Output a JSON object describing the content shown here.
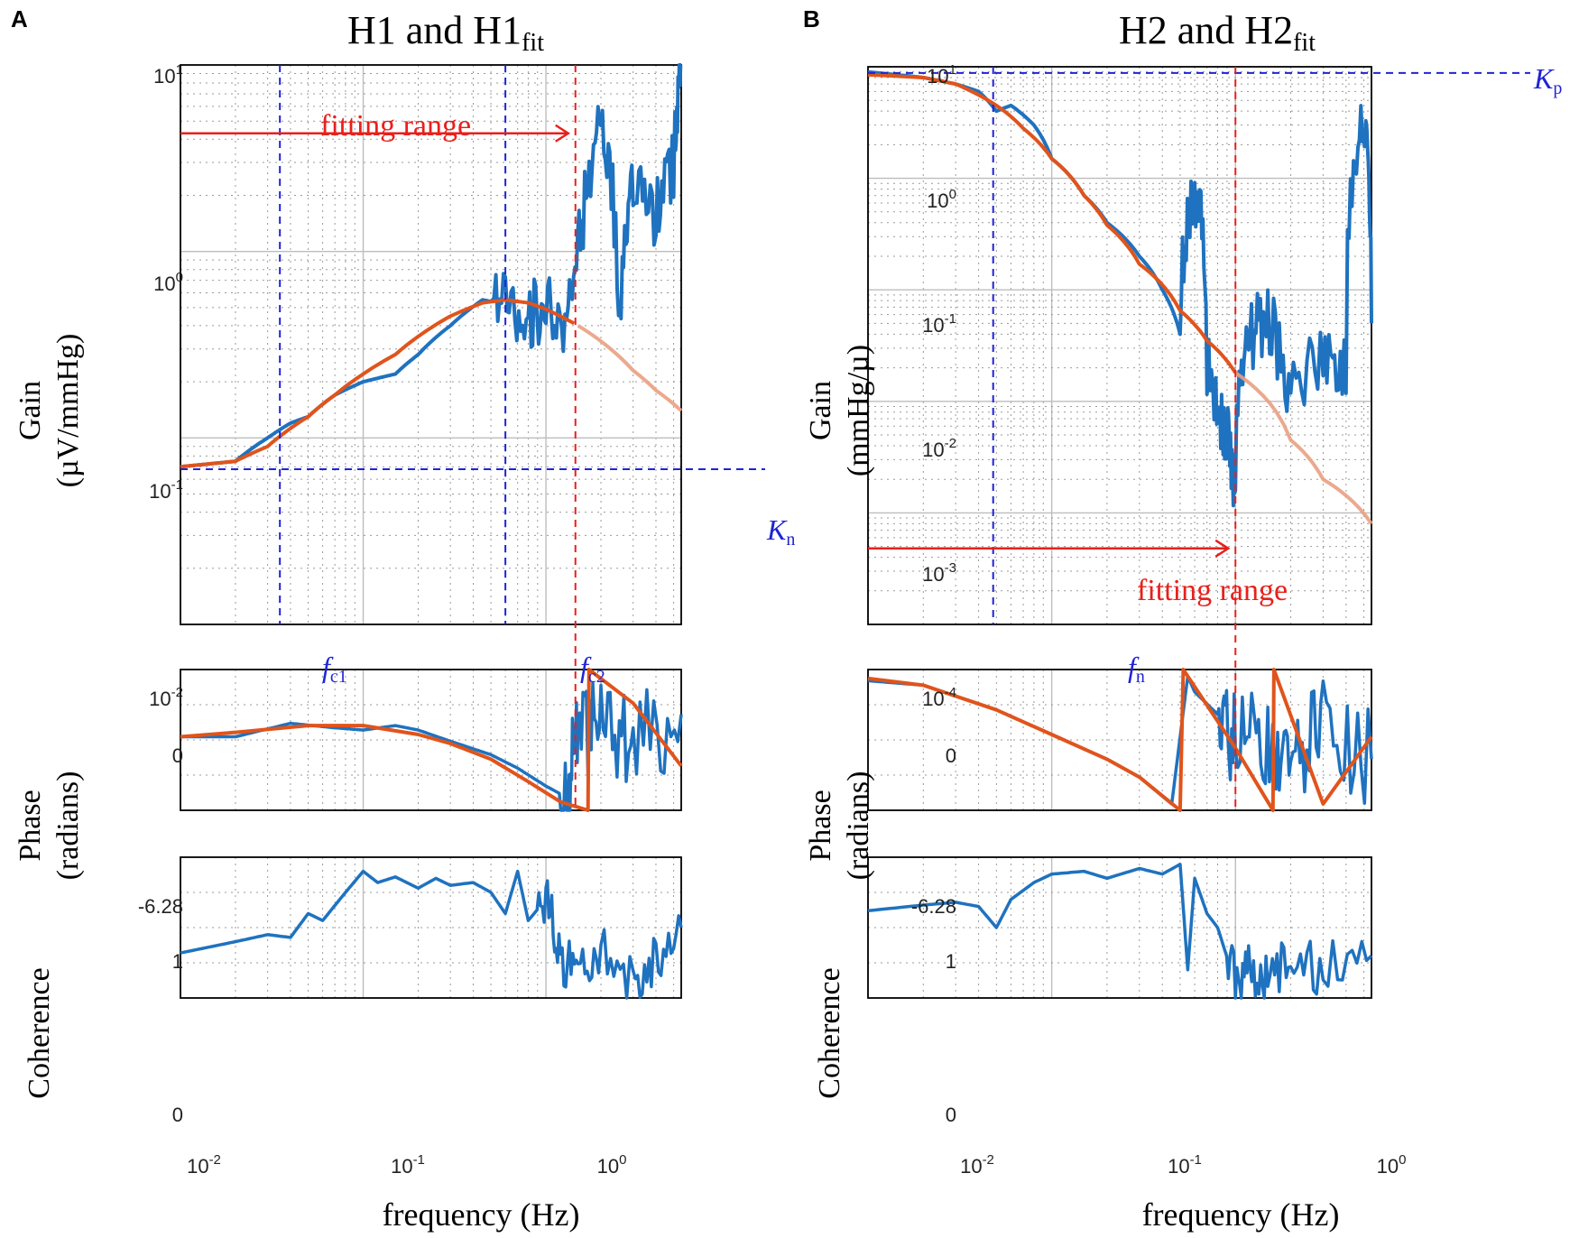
{
  "colors": {
    "measured": "#1f72bf",
    "fit": "#e0541c",
    "fit_faded": "#e9a082",
    "annotation_blue": "#1f24d6",
    "annotation_red": "#e8201c",
    "grid_major": "#bdbdbd",
    "grid_minor": "#9a9a9a"
  },
  "labels": {
    "panelA": "A",
    "panelB": "B",
    "titleA_main": "H1 and H1",
    "titleA_sub": "fit",
    "titleB_main": "H2 and H2",
    "titleB_sub": "fit",
    "gainA_line1": "Gain",
    "gainA_line2": "(µV/mmHg)",
    "gainB_line1": "Gain",
    "gainB_line2": "(mmHg/µ)",
    "phase_line1": "Phase",
    "phase_line2": "(radians)",
    "coherence": "Coherence",
    "xlabel": "frequency (Hz)",
    "fitting_range": "fitting range",
    "Kn_main": "K",
    "Kn_sub": "n",
    "Kp_main": "K",
    "Kp_sub": "p",
    "fc1_main": "f",
    "fc1_sub": "c1",
    "fc2_main": "f",
    "fc2_sub": "c2",
    "fn_main": "f",
    "fn_sub": "n",
    "phase_top": "0",
    "phase_bottom": "-6.28",
    "coh_top": "1",
    "coh_bottom": "0",
    "x_ticks": [
      "10",
      "10",
      "10"
    ],
    "x_tick_exps": [
      "-2",
      "-1",
      "0"
    ],
    "gainA_ticks": [
      "10",
      "10",
      "10",
      "10"
    ],
    "gainA_tick_exps": [
      "1",
      "0",
      "-1",
      "-2"
    ],
    "gainB_ticks": [
      "10",
      "10",
      "10",
      "10",
      "10",
      "10"
    ],
    "gainB_tick_exps": [
      "1",
      "0",
      "-1",
      "-2",
      "-3",
      "-4"
    ]
  },
  "chart_data": [
    {
      "panel": "A",
      "type": "line",
      "title": "H1 and H1fit",
      "xscale": "log",
      "xlim": [
        0.01,
        5.5
      ],
      "xlabel": "frequency (Hz)",
      "gain": {
        "ylabel": "Gain (µV/mmHg)",
        "yscale": "log",
        "ylim": [
          0.01,
          10
        ],
        "measured_x": [
          0.01,
          0.02,
          0.03,
          0.04,
          0.05,
          0.07,
          0.1,
          0.15,
          0.2,
          0.3,
          0.45,
          0.6,
          0.8,
          1.0,
          1.3,
          1.6,
          2.0,
          2.5,
          3.0,
          4.0,
          5.0,
          5.5
        ],
        "measured_y": [
          0.07,
          0.075,
          0.1,
          0.12,
          0.13,
          0.17,
          0.2,
          0.22,
          0.28,
          0.4,
          0.55,
          0.52,
          0.45,
          0.5,
          0.3,
          1.5,
          5.0,
          0.4,
          2.0,
          1.5,
          3.0,
          10.0
        ],
        "fit_x": [
          0.01,
          0.02,
          0.03,
          0.05,
          0.07,
          0.1,
          0.15,
          0.2,
          0.3,
          0.45,
          0.6,
          0.8,
          1.0,
          1.5,
          2.0,
          3.0,
          4.0,
          5.5
        ],
        "fit_y": [
          0.07,
          0.075,
          0.09,
          0.13,
          0.17,
          0.22,
          0.28,
          0.35,
          0.45,
          0.53,
          0.55,
          0.53,
          0.49,
          0.4,
          0.33,
          0.23,
          0.18,
          0.14
        ]
      },
      "phase": {
        "ylabel": "Phase (radians)",
        "ylim": [
          -6.28,
          0
        ],
        "measured_x": [
          0.01,
          0.02,
          0.04,
          0.07,
          0.1,
          0.15,
          0.2,
          0.3,
          0.5,
          0.7,
          1.0,
          1.3,
          1.5,
          2.0,
          3.0,
          5.5
        ],
        "measured_y": [
          -3.0,
          -3.0,
          -2.4,
          -2.6,
          -2.7,
          -2.5,
          -2.7,
          -3.2,
          -3.8,
          -4.4,
          -5.2,
          -5.7,
          -3.0,
          -2.5,
          -3.5,
          -2.0
        ],
        "fit_x": [
          0.01,
          0.02,
          0.05,
          0.1,
          0.2,
          0.3,
          0.5,
          0.8,
          1.2,
          1.7,
          1.72,
          3.0,
          5.5
        ],
        "fit_y": [
          -3.0,
          -2.8,
          -2.5,
          -2.5,
          -2.9,
          -3.3,
          -4.0,
          -5.0,
          -5.9,
          -6.28,
          0.0,
          -1.5,
          -4.3
        ]
      },
      "coherence": {
        "ylabel": "Coherence",
        "ylim": [
          0,
          1
        ],
        "x": [
          0.01,
          0.02,
          0.03,
          0.04,
          0.05,
          0.06,
          0.08,
          0.1,
          0.12,
          0.15,
          0.2,
          0.25,
          0.3,
          0.4,
          0.5,
          0.6,
          0.7,
          0.8,
          1.0,
          1.2,
          1.5,
          2.0,
          3.0,
          4.0,
          5.5
        ],
        "y": [
          0.32,
          0.4,
          0.45,
          0.43,
          0.6,
          0.55,
          0.75,
          0.9,
          0.82,
          0.86,
          0.78,
          0.85,
          0.8,
          0.82,
          0.75,
          0.6,
          0.9,
          0.55,
          0.7,
          0.3,
          0.15,
          0.35,
          0.1,
          0.3,
          0.5
        ]
      },
      "annotations": {
        "Kn": 0.068,
        "fc1": 0.035,
        "fc2": 0.6,
        "fit_limit": 1.45,
        "fitting_range_y": 4.3
      }
    },
    {
      "panel": "B",
      "type": "line",
      "title": "H2 and H2fit",
      "xscale": "log",
      "xlim": [
        0.01,
        5.5
      ],
      "xlabel": "frequency (Hz)",
      "gain": {
        "ylabel": "Gain (mmHg/µ)",
        "yscale": "log",
        "ylim": [
          0.0001,
          10
        ],
        "measured_x": [
          0.01,
          0.02,
          0.03,
          0.04,
          0.05,
          0.06,
          0.08,
          0.1,
          0.15,
          0.2,
          0.3,
          0.4,
          0.5,
          0.6,
          0.7,
          0.8,
          0.9,
          1.0,
          1.2,
          1.5,
          2.0,
          3.0,
          4.0,
          5.0,
          5.5
        ],
        "measured_y": [
          9.0,
          8.0,
          7.0,
          6.0,
          4.0,
          4.5,
          3.0,
          1.5,
          0.7,
          0.4,
          0.2,
          0.1,
          0.04,
          0.8,
          0.02,
          0.008,
          0.005,
          0.0015,
          0.04,
          0.05,
          0.01,
          0.03,
          0.02,
          3.0,
          0.05
        ],
        "fit_x": [
          0.01,
          0.02,
          0.03,
          0.05,
          0.07,
          0.1,
          0.15,
          0.2,
          0.3,
          0.5,
          0.7,
          1.0,
          2.0,
          3.0,
          5.5
        ],
        "fit_y": [
          8.5,
          8.0,
          7.0,
          4.5,
          2.8,
          1.5,
          0.7,
          0.38,
          0.17,
          0.065,
          0.035,
          0.018,
          0.0045,
          0.002,
          0.0008
        ]
      },
      "phase": {
        "ylabel": "Phase (radians)",
        "ylim": [
          -6.28,
          0
        ],
        "measured_x": [
          0.01,
          0.02,
          0.05,
          0.1,
          0.2,
          0.3,
          0.45,
          0.55,
          0.6,
          0.8,
          1.0,
          1.5,
          2.0,
          3.0,
          5.5
        ],
        "measured_y": [
          -0.5,
          -0.7,
          -1.8,
          -2.9,
          -4.0,
          -4.8,
          -6.0,
          -0.3,
          -1.0,
          -2.0,
          -3.4,
          -3.0,
          -4.5,
          -2.5,
          -4.0
        ],
        "fit_x": [
          0.01,
          0.02,
          0.05,
          0.1,
          0.2,
          0.3,
          0.5,
          0.52,
          1.0,
          1.6,
          1.62,
          3.0,
          5.5
        ],
        "fit_y": [
          -0.4,
          -0.7,
          -1.8,
          -2.9,
          -4.0,
          -4.8,
          -6.28,
          0.0,
          -3.5,
          -6.28,
          0.0,
          -6.0,
          -3.0
        ]
      },
      "coherence": {
        "ylabel": "Coherence",
        "ylim": [
          0,
          1
        ],
        "x": [
          0.01,
          0.02,
          0.03,
          0.04,
          0.05,
          0.06,
          0.08,
          0.1,
          0.15,
          0.2,
          0.3,
          0.4,
          0.5,
          0.55,
          0.6,
          0.7,
          0.8,
          1.0,
          1.2,
          1.5,
          2.0,
          3.0,
          5.5
        ],
        "y": [
          0.62,
          0.66,
          0.68,
          0.65,
          0.5,
          0.7,
          0.82,
          0.88,
          0.9,
          0.85,
          0.92,
          0.88,
          0.95,
          0.2,
          0.85,
          0.6,
          0.5,
          0.1,
          0.2,
          0.15,
          0.3,
          0.2,
          0.3
        ]
      },
      "annotations": {
        "Kp": 8.8,
        "fn": 0.048,
        "fit_limit": 1.0,
        "fitting_range_y": 0.00048
      }
    }
  ]
}
